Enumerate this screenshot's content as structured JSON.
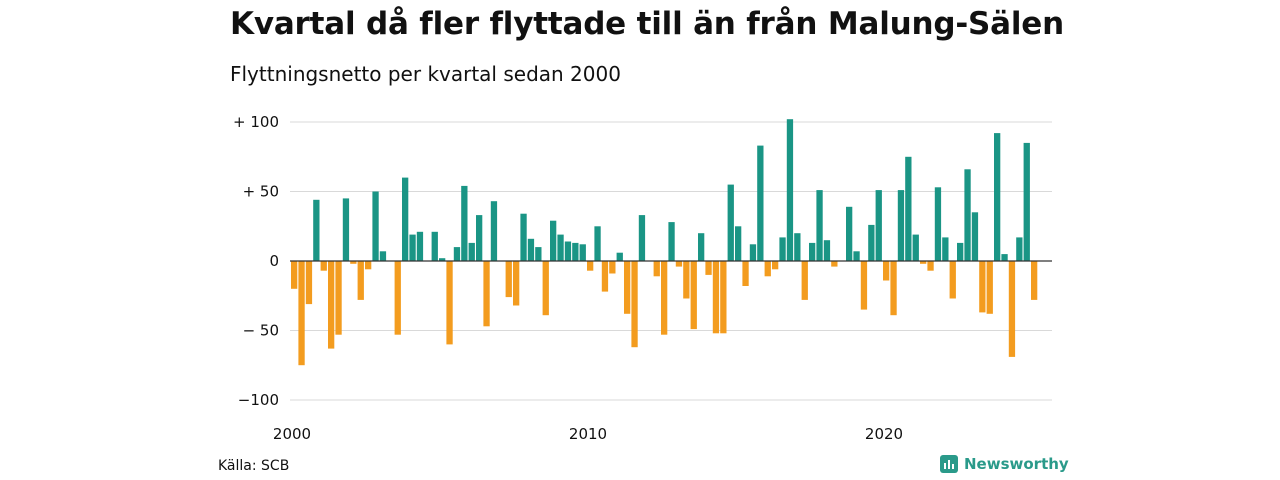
{
  "title": "Kvartal då fler flyttade till än från Malung-Sälen",
  "subtitle": "Flyttningsnetto per kvartal sedan 2000",
  "source": "Källa: SCB",
  "brand": "Newsworthy",
  "colors": {
    "positive": "#1a9585",
    "negative": "#f39c1f",
    "grid": "#d9d9d9",
    "axis": "#333333"
  },
  "chart_data": {
    "type": "bar",
    "ylim": [
      -110,
      105
    ],
    "yticks": [
      {
        "value": 100,
        "label": "+ 100"
      },
      {
        "value": 50,
        "label": "+  50"
      },
      {
        "value": 0,
        "label": "0"
      },
      {
        "value": -50,
        "label": "− 50"
      },
      {
        "value": -100,
        "label": "−100"
      }
    ],
    "xticks": [
      {
        "quarter_index": 0,
        "label": "2000"
      },
      {
        "quarter_index": 40,
        "label": "2010"
      },
      {
        "quarter_index": 80,
        "label": "2020"
      }
    ],
    "start": "2000 Q1",
    "values": [
      -20,
      -75,
      -31,
      44,
      -7,
      -63,
      -53,
      45,
      -2,
      -28,
      -6,
      50,
      7,
      0,
      -53,
      60,
      19,
      21,
      0,
      21,
      2,
      -60,
      10,
      54,
      13,
      33,
      -47,
      43,
      0,
      -26,
      -32,
      34,
      16,
      10,
      -39,
      29,
      19,
      14,
      13,
      12,
      -7,
      25,
      -22,
      -9,
      6,
      -38,
      -62,
      33,
      0,
      -11,
      -53,
      28,
      -4,
      -27,
      -49,
      20,
      -10,
      -52,
      -52,
      55,
      25,
      -18,
      12,
      83,
      -11,
      -6,
      17,
      102,
      20,
      -28,
      13,
      51,
      15,
      -4,
      0,
      39,
      7,
      -35,
      26,
      51,
      -14,
      -39,
      51,
      75,
      19,
      -2,
      -7,
      53,
      17,
      -27,
      13,
      66,
      35,
      -37,
      -38,
      92,
      5,
      -69,
      17,
      85,
      -28
    ]
  }
}
